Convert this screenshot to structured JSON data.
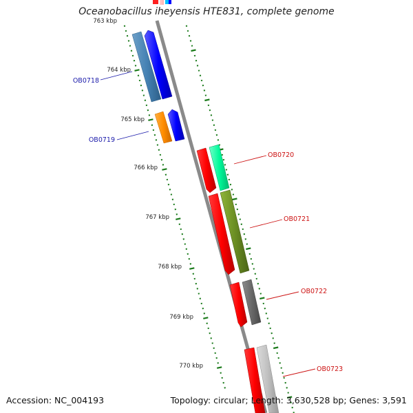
{
  "title": "Oceanobacillus iheyensis HTE831, complete genome",
  "footer": {
    "accession": "Accession: NC_004193",
    "summary": "Topology: circular; Length: 3,630,528 bp; Genes: 3,591"
  },
  "colors": {
    "backbone": "#8a8a8a",
    "tick": "#1a7a1a",
    "label_left": "#1a1aaa",
    "label_right": "#cc1111"
  },
  "kbp_labels": [
    "763 kbp",
    "764 kbp",
    "765 kbp",
    "766 kbp",
    "767 kbp",
    "768 kbp",
    "769 kbp",
    "770 kbp"
  ],
  "genes_left": [
    {
      "name": "OB0718"
    },
    {
      "name": "OB0719"
    }
  ],
  "genes_right": [
    {
      "name": "OB0720"
    },
    {
      "name": "OB0721"
    },
    {
      "name": "OB0722"
    },
    {
      "name": "OB0723"
    }
  ]
}
